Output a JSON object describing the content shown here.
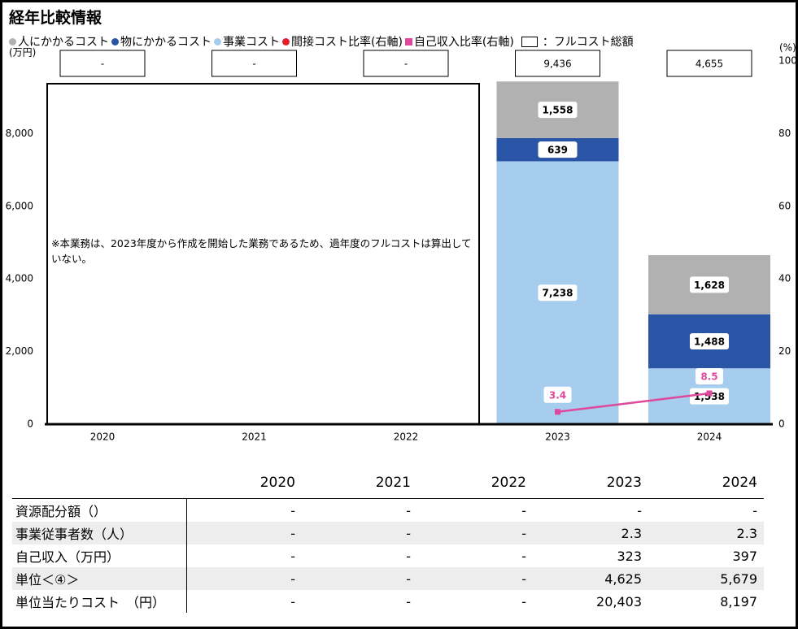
{
  "title": "経年比較情報",
  "chart_data": {
    "type": "bar",
    "categories": [
      "2020",
      "2021",
      "2022",
      "2023",
      "2024"
    ],
    "series": [
      {
        "name": "人にかかるコスト",
        "color": "#b1b1b1",
        "values": [
          null,
          null,
          null,
          1558,
          1628
        ],
        "value_labels": [
          null,
          null,
          null,
          "1,558",
          "1,628"
        ]
      },
      {
        "name": "物にかかるコスト",
        "color": "#2a54a6",
        "values": [
          null,
          null,
          null,
          639,
          1488
        ],
        "value_labels": [
          null,
          null,
          null,
          "639",
          "1,488"
        ]
      },
      {
        "name": "事業コスト",
        "color": "#a6ccee",
        "values": [
          null,
          null,
          null,
          7238,
          1538
        ],
        "value_labels": [
          null,
          null,
          null,
          "7,238",
          "1,538"
        ]
      },
      {
        "name": "間接コスト比率(右軸)",
        "color": "#e5202a",
        "type": "line",
        "axis": "y2",
        "values": [
          null,
          null,
          null,
          null,
          null
        ]
      },
      {
        "name": "自己収入比率(右軸)",
        "color": "#e0489b",
        "type": "line",
        "axis": "y2",
        "values": [
          null,
          null,
          null,
          3.4,
          8.5
        ]
      }
    ],
    "full_cost": {
      "name": "：フルコスト総額",
      "values": [
        null,
        null,
        null,
        9436,
        4655
      ],
      "value_labels": [
        "-",
        "-",
        "-",
        "9,436",
        "4,655"
      ]
    },
    "annotation": "※本業務は、2023年度から作成を開始した業務であるため、過年度のフルコストは算出していない。",
    "ylabel": "(万円)",
    "y2label": "(%)",
    "ylim": [
      0,
      10000
    ],
    "yticks": [
      0,
      {
        "value": 2000,
        "label": "2,000"
      },
      {
        "value": 4000,
        "label": "4,000"
      },
      {
        "value": 6000,
        "label": "6,000"
      },
      {
        "value": 8000,
        "label": "8,000"
      }
    ],
    "y2lim": [
      0,
      100
    ],
    "y2ticks": [
      0,
      20,
      40,
      60,
      80,
      100
    ]
  },
  "table": {
    "header": [
      "2020",
      "2021",
      "2022",
      "2023",
      "2024"
    ],
    "rows": [
      [
        "資源配分額（）",
        "-",
        "-",
        "-",
        "-",
        "-"
      ],
      [
        "事業従事者数（人）",
        "-",
        "-",
        "-",
        "2.3",
        "2.3"
      ],
      [
        "自己収入（万円）",
        "-",
        "-",
        "-",
        "323",
        "397"
      ],
      [
        "単位＜④＞",
        "-",
        "-",
        "-",
        "4,625",
        "5,679"
      ],
      [
        "単位当たりコスト　（円）",
        "-",
        "-",
        "-",
        "20,403",
        "8,197"
      ]
    ]
  }
}
